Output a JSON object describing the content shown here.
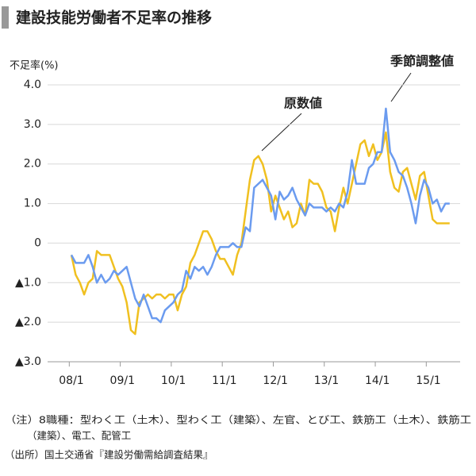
{
  "chart_data": {
    "type": "line",
    "title": "建設技能労働者不足率の推移",
    "y_label": "不足率(%)",
    "categories": [
      "08/1",
      null,
      null,
      null,
      null,
      null,
      null,
      null,
      null,
      null,
      null,
      null,
      "09/1",
      null,
      null,
      null,
      null,
      null,
      null,
      null,
      null,
      null,
      null,
      null,
      "10/1",
      null,
      null,
      null,
      null,
      null,
      null,
      null,
      null,
      null,
      null,
      null,
      "11/1",
      null,
      null,
      null,
      null,
      null,
      null,
      null,
      null,
      null,
      null,
      null,
      "12/1",
      null,
      null,
      null,
      null,
      null,
      null,
      null,
      null,
      null,
      null,
      null,
      "13/1",
      null,
      null,
      null,
      null,
      null,
      null,
      null,
      null,
      null,
      null,
      null,
      "14/1",
      null,
      null,
      null,
      null,
      null,
      null,
      null,
      null,
      null,
      null,
      null,
      "15/1",
      null,
      null,
      null,
      null,
      null
    ],
    "series": [
      {
        "name": "原数値",
        "color": "#f0c020",
        "values": [
          -0.3,
          -0.8,
          -1.0,
          -1.3,
          -1.0,
          -0.9,
          -0.2,
          -0.3,
          -0.3,
          -0.3,
          -0.6,
          -0.9,
          -1.1,
          -1.5,
          -2.2,
          -2.3,
          -1.5,
          -1.4,
          -1.3,
          -1.4,
          -1.3,
          -1.3,
          -1.4,
          -1.3,
          -1.3,
          -1.7,
          -1.3,
          -1.1,
          -0.5,
          -0.3,
          0.0,
          0.3,
          0.3,
          0.1,
          -0.2,
          -0.4,
          -0.4,
          -0.6,
          -0.8,
          -0.3,
          0.0,
          0.8,
          1.6,
          2.1,
          2.2,
          2.0,
          1.6,
          0.8,
          1.2,
          0.9,
          0.6,
          0.8,
          0.4,
          0.5,
          1.0,
          0.7,
          1.6,
          1.5,
          1.5,
          1.3,
          0.9,
          0.8,
          0.3,
          0.9,
          1.4,
          1.0,
          1.5,
          2.0,
          2.5,
          2.6,
          2.2,
          2.5,
          2.1,
          2.3,
          2.8,
          1.8,
          1.4,
          1.3,
          1.8,
          1.9,
          1.5,
          1.1,
          1.7,
          1.8,
          1.2,
          0.6,
          0.5,
          0.5,
          0.5,
          0.5
        ]
      },
      {
        "name": "季節調整値",
        "color": "#6b9bef",
        "values": [
          -0.3,
          -0.5,
          -0.5,
          -0.5,
          -0.3,
          -0.6,
          -1.0,
          -0.8,
          -1.0,
          -0.9,
          -0.7,
          -0.8,
          -0.7,
          -0.6,
          -1.0,
          -1.4,
          -1.6,
          -1.3,
          -1.6,
          -1.9,
          -1.9,
          -2.0,
          -1.7,
          -1.6,
          -1.5,
          -1.3,
          -1.2,
          -0.7,
          -0.9,
          -0.6,
          -0.7,
          -0.6,
          -0.8,
          -0.6,
          -0.3,
          -0.1,
          -0.1,
          -0.1,
          0.0,
          -0.1,
          -0.1,
          0.4,
          0.3,
          1.4,
          1.5,
          1.6,
          1.4,
          1.2,
          0.6,
          1.3,
          1.1,
          1.2,
          1.4,
          1.1,
          0.9,
          0.7,
          1.0,
          0.9,
          0.9,
          0.9,
          0.8,
          0.9,
          0.8,
          1.0,
          0.9,
          1.3,
          2.1,
          1.5,
          1.5,
          1.5,
          1.9,
          2.0,
          2.3,
          2.3,
          3.4,
          2.3,
          2.1,
          1.8,
          1.7,
          1.4,
          1.0,
          0.5,
          1.2,
          1.6,
          1.4,
          1.0,
          1.1,
          0.8,
          1.0,
          1.0
        ]
      }
    ],
    "ylim": [
      -3,
      4
    ],
    "yticks": [
      {
        "value": 4,
        "label": "4.0"
      },
      {
        "value": 3,
        "label": "3.0"
      },
      {
        "value": 2,
        "label": "2.0"
      },
      {
        "value": 1,
        "label": "1.0"
      },
      0,
      {
        "value": -1,
        "label": "▲1.0"
      },
      {
        "value": -2,
        "label": "▲2.0"
      },
      {
        "value": -3,
        "label": "▲3.0"
      }
    ],
    "grid": true,
    "notes": [
      "（注）8職種：型わく工（土木）、型わく工（建築）、左官、とび工、鉄筋工（土木）、鉄筋工",
      "（建築）、電工、配管工",
      "（出所）国土交通省『建設労働需給調査結果』"
    ]
  }
}
